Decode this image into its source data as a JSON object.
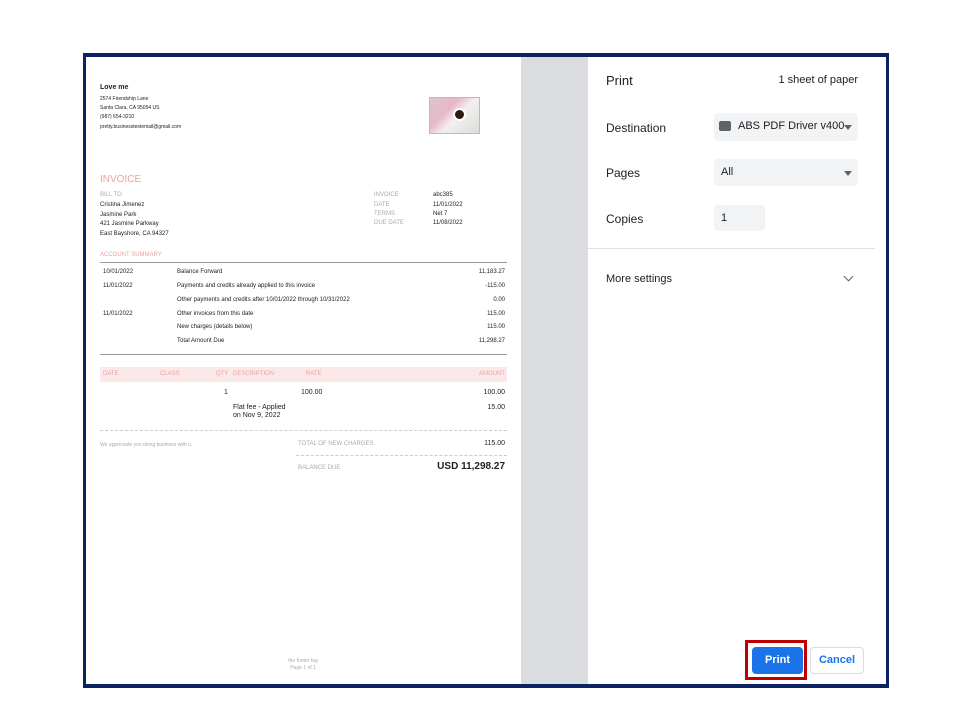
{
  "invoice": {
    "company": "Love me",
    "address": [
      "2574  Friendship Lane",
      "Santa Clara, CA  95054 US",
      "(987) 654-3210",
      "pretty.businesstestemail@gmail.com"
    ],
    "title": "INVOICE",
    "bill_to_label": "BILL TO",
    "bill_to": [
      "Cristina Jimenez",
      "Jasmine Park",
      "421 Jasmine Parkway",
      "East Bayshore, CA  94327"
    ],
    "meta": [
      {
        "label": "INVOICE",
        "value": "abc385"
      },
      {
        "label": "DATE",
        "value": "11/01/2022"
      },
      {
        "label": "TERMS",
        "value": "Net 7"
      },
      {
        "label": "DUE DATE",
        "value": "11/08/2022"
      }
    ],
    "summary_label": "ACCOUNT SUMMARY",
    "summary": [
      {
        "date": "10/01/2022",
        "desc": "Balance Forward",
        "amount": "11,183.27"
      },
      {
        "date": "11/01/2022",
        "desc": "Payments and credits already applied to this invoice",
        "amount": "-115.00"
      },
      {
        "date": "",
        "desc": "Other payments and credits after 10/01/2022 through 10/31/2022",
        "amount": "0.00"
      },
      {
        "date": "11/01/2022",
        "desc": "Other invoices from this date",
        "amount": "115.00"
      },
      {
        "date": "",
        "desc": "New charges (details below)",
        "amount": "115.00"
      },
      {
        "date": "",
        "desc": "Total Amount Due",
        "amount": "11,298.27"
      }
    ],
    "columns": {
      "date": "DATE",
      "class": "CLASS",
      "qty": "QTY",
      "description": "DESCRIPTION",
      "rate": "RATE",
      "amount": "AMOUNT"
    },
    "items": [
      {
        "qty": "1",
        "description": "",
        "rate": "100.00",
        "amount": "100.00"
      },
      {
        "qty": "",
        "description_1": "Flat fee - Applied",
        "description_2": "on Nov 9, 2022",
        "rate": "",
        "amount": "15.00"
      }
    ],
    "note": "We appreciate you doing business with u.",
    "total_label": "TOTAL OF NEW CHARGES",
    "total": "115.00",
    "balance_label": "BALANCE DUE",
    "balance": "USD 11,298.27",
    "footer": "the footer tag",
    "page_num": "Page 1 of 1"
  },
  "print": {
    "title": "Print",
    "sheets": "1 sheet of paper",
    "destination_label": "Destination",
    "destination": "ABS PDF Driver v400",
    "pages_label": "Pages",
    "pages": "All",
    "copies_label": "Copies",
    "copies": "1",
    "more_settings": "More settings",
    "print_button": "Print",
    "cancel_button": "Cancel",
    "accent": "#1a73e8",
    "highlight": "#c00000"
  }
}
